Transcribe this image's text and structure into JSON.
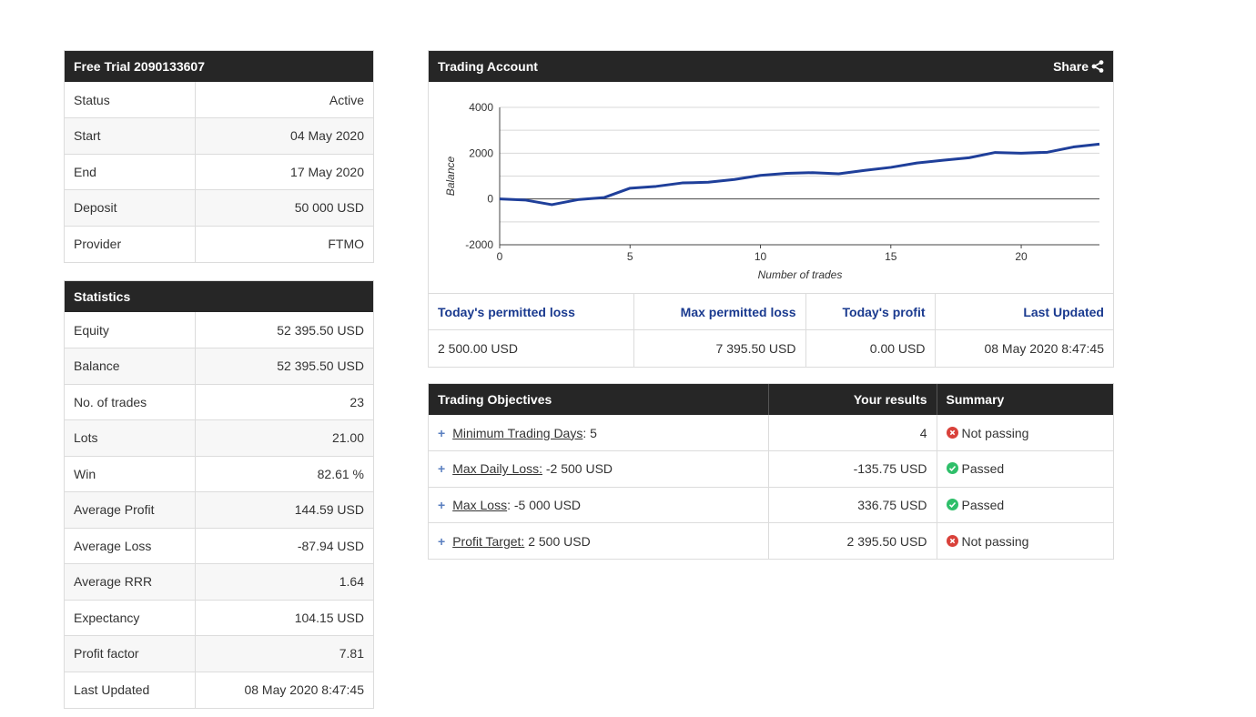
{
  "account_panel": {
    "title": "Free Trial 2090133607",
    "rows": [
      {
        "label": "Status",
        "value": "Active"
      },
      {
        "label": "Start",
        "value": "04 May 2020"
      },
      {
        "label": "End",
        "value": "17 May 2020"
      },
      {
        "label": "Deposit",
        "value": "50 000 USD"
      },
      {
        "label": "Provider",
        "value": "FTMO"
      }
    ]
  },
  "statistics_panel": {
    "title": "Statistics",
    "rows": [
      {
        "label": "Equity",
        "value": "52 395.50 USD"
      },
      {
        "label": "Balance",
        "value": "52 395.50 USD"
      },
      {
        "label": "No. of trades",
        "value": "23"
      },
      {
        "label": "Lots",
        "value": "21.00"
      },
      {
        "label": "Win",
        "value": "82.61 %"
      },
      {
        "label": "Average Profit",
        "value": "144.59 USD"
      },
      {
        "label": "Average Loss",
        "value": "-87.94 USD"
      },
      {
        "label": "Average RRR",
        "value": "1.64"
      },
      {
        "label": "Expectancy",
        "value": "104.15 USD"
      },
      {
        "label": "Profit factor",
        "value": "7.81"
      },
      {
        "label": "Last Updated",
        "value": "08 May 2020 8:47:45"
      }
    ]
  },
  "trading_account": {
    "title": "Trading Account",
    "share_label": "Share",
    "share_icon": "share-icon",
    "metrics": {
      "headers": [
        "Today's permitted loss",
        "Max permitted loss",
        "Today's profit",
        "Last Updated"
      ],
      "values": [
        "2 500.00 USD",
        "7 395.50 USD",
        "0.00 USD",
        "08 May 2020 8:47:45"
      ]
    }
  },
  "chart_data": {
    "type": "line",
    "title": "",
    "xlabel": "Number of trades",
    "ylabel": "Balance",
    "xlim": [
      0,
      23
    ],
    "ylim": [
      -2000,
      4000
    ],
    "x_ticks": [
      0,
      5,
      10,
      15,
      20
    ],
    "y_ticks": [
      -2000,
      0,
      2000,
      4000
    ],
    "grid": true,
    "color": "#1f3f9a",
    "series": [
      {
        "x": [
          0,
          1,
          2,
          3,
          4,
          5,
          6,
          7,
          8,
          9,
          10,
          11,
          12,
          13,
          14,
          15,
          16,
          17,
          18,
          19,
          20,
          21,
          22,
          23
        ],
        "values": [
          0,
          -50,
          -250,
          -30,
          60,
          470,
          550,
          700,
          730,
          850,
          1030,
          1120,
          1150,
          1100,
          1250,
          1380,
          1570,
          1690,
          1800,
          2030,
          2000,
          2040,
          2270,
          2395
        ]
      }
    ]
  },
  "objectives_panel": {
    "headers": {
      "objective": "Trading Objectives",
      "results": "Your results",
      "summary": "Summary"
    },
    "rows": [
      {
        "name": "Minimum Trading Days",
        "sep": ":",
        "target": " 5",
        "result": "4",
        "status": "fail",
        "summary": "Not passing"
      },
      {
        "name": "Max Daily Loss:",
        "sep": "",
        "target": " -2 500 USD",
        "result": "-135.75 USD",
        "status": "pass",
        "summary": "Passed"
      },
      {
        "name": "Max Loss",
        "sep": ":",
        "target": " -5 000 USD",
        "result": "336.75 USD",
        "status": "pass",
        "summary": "Passed"
      },
      {
        "name": "Profit Target:",
        "sep": "",
        "target": " 2 500 USD",
        "result": "2 395.50 USD",
        "status": "fail",
        "summary": "Not passing"
      }
    ]
  }
}
